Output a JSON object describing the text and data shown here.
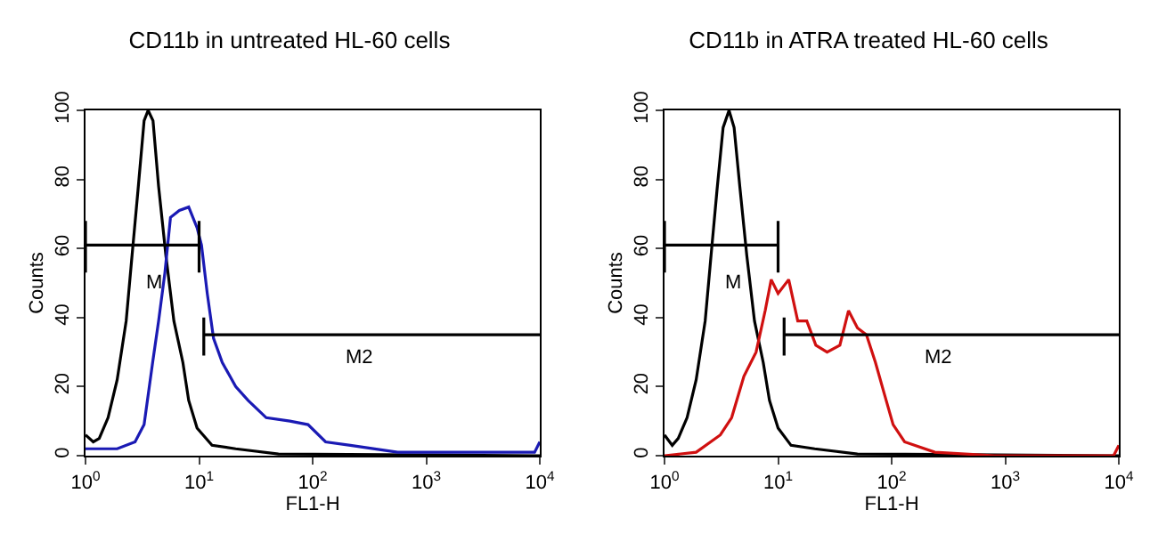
{
  "chart_data": [
    {
      "type": "line",
      "title": "CD11b in untreated HL-60 cells",
      "xlabel": "FL1-H",
      "ylabel": "Counts",
      "log": "x",
      "grid": false,
      "marker": "none",
      "xlim": [
        1,
        10000
      ],
      "xticks": [
        {
          "value": 1,
          "label": "10$^{0}$"
        },
        {
          "value": 10,
          "label": "10$^{1}$"
        },
        {
          "value": 100,
          "label": "10$^{2}$"
        },
        {
          "value": 1000,
          "label": "10$^{3}$"
        },
        {
          "value": 10000,
          "label": "10$^{4}$"
        }
      ],
      "ylim": [
        0,
        100
      ],
      "yticks": [
        0,
        20,
        40,
        60,
        80,
        100
      ],
      "annotations": [
        "M",
        "M2"
      ],
      "series": [
        {
          "color": "#000000",
          "x": [
            1,
            1.17,
            1.32,
            1.58,
            1.9,
            2.28,
            2.57,
            2.9,
            3.28,
            3.56,
            3.93,
            4.4,
            5.1,
            6.0,
            7.2,
            8.1,
            9.6,
            13,
            21,
            50,
            10000
          ],
          "values": [
            6,
            4,
            5,
            11,
            22,
            39,
            58,
            77,
            97,
            100,
            97,
            78,
            58,
            39,
            27,
            16,
            8,
            3,
            2,
            0.5,
            0
          ]
        },
        {
          "color": "#1a1ab4",
          "x": [
            1,
            1.9,
            2.73,
            3.28,
            3.9,
            4.4,
            5.0,
            5.6,
            6.7,
            8.1,
            9.6,
            10.5,
            11.8,
            13.4,
            16,
            21,
            27,
            39,
            63,
            91,
            130,
            215,
            560,
            9000,
            10000
          ],
          "values": [
            2,
            2,
            4,
            9,
            27,
            39,
            53,
            69,
            71,
            72,
            66,
            61,
            47,
            34,
            27,
            20,
            16,
            11,
            10,
            9,
            4,
            3,
            1,
            1,
            4
          ]
        },
        {
          "color": "#000000",
          "x": [
            1,
            1,
            1,
            10,
            10,
            10
          ],
          "values": [
            53,
            68,
            61,
            61,
            68,
            53
          ]
        },
        {
          "color": "#000000",
          "x": [
            11,
            11,
            11,
            10000
          ],
          "values": [
            29,
            40,
            35,
            35
          ]
        }
      ]
    },
    {
      "type": "line",
      "title": "CD11b in ATRA treated HL-60 cells",
      "xlabel": "FL1-H",
      "ylabel": "Counts",
      "log": "x",
      "grid": false,
      "marker": "none",
      "xlim": [
        1,
        10000
      ],
      "xticks": [
        {
          "value": 1,
          "label": "10$^{0}$"
        },
        {
          "value": 10,
          "label": "10$^{1}$"
        },
        {
          "value": 100,
          "label": "10$^{2}$"
        },
        {
          "value": 1000,
          "label": "10$^{3}$"
        },
        {
          "value": 10000,
          "label": "10$^{4}$"
        }
      ],
      "ylim": [
        0,
        100
      ],
      "yticks": [
        0,
        20,
        40,
        60,
        80,
        100
      ],
      "annotations": [
        "M",
        "M2"
      ],
      "series": [
        {
          "color": "#000000",
          "x": [
            1,
            1.17,
            1.32,
            1.58,
            1.9,
            2.28,
            2.57,
            2.9,
            3.28,
            3.7,
            4.1,
            4.6,
            5.3,
            6.2,
            7.4,
            8.4,
            10,
            13,
            21,
            50,
            10000
          ],
          "values": [
            6,
            3,
            5,
            11,
            22,
            39,
            58,
            77,
            95,
            100,
            95,
            78,
            58,
            39,
            27,
            16,
            8,
            3,
            2,
            0.5,
            0
          ]
        },
        {
          "color": "#d01010",
          "x": [
            1,
            1.9,
            3.1,
            3.9,
            5.0,
            6.4,
            7.7,
            8.7,
            10,
            12.4,
            14.9,
            17.9,
            21.5,
            27,
            35,
            41.7,
            50,
            60,
            72,
            86,
            103,
            130,
            240,
            800,
            9000,
            10000
          ],
          "values": [
            0,
            1,
            6,
            11,
            23,
            30,
            42,
            51,
            47,
            51,
            39,
            39,
            32,
            30,
            32,
            42,
            37,
            35,
            27,
            18,
            9,
            4,
            1,
            0,
            0,
            3
          ]
        },
        {
          "color": "#000000",
          "x": [
            1,
            1,
            1,
            10,
            10,
            10
          ],
          "values": [
            53,
            68,
            61,
            61,
            68,
            53
          ]
        },
        {
          "color": "#000000",
          "x": [
            11.3,
            11.3,
            11.3,
            10000
          ],
          "values": [
            29,
            40,
            35,
            35
          ]
        }
      ]
    }
  ]
}
